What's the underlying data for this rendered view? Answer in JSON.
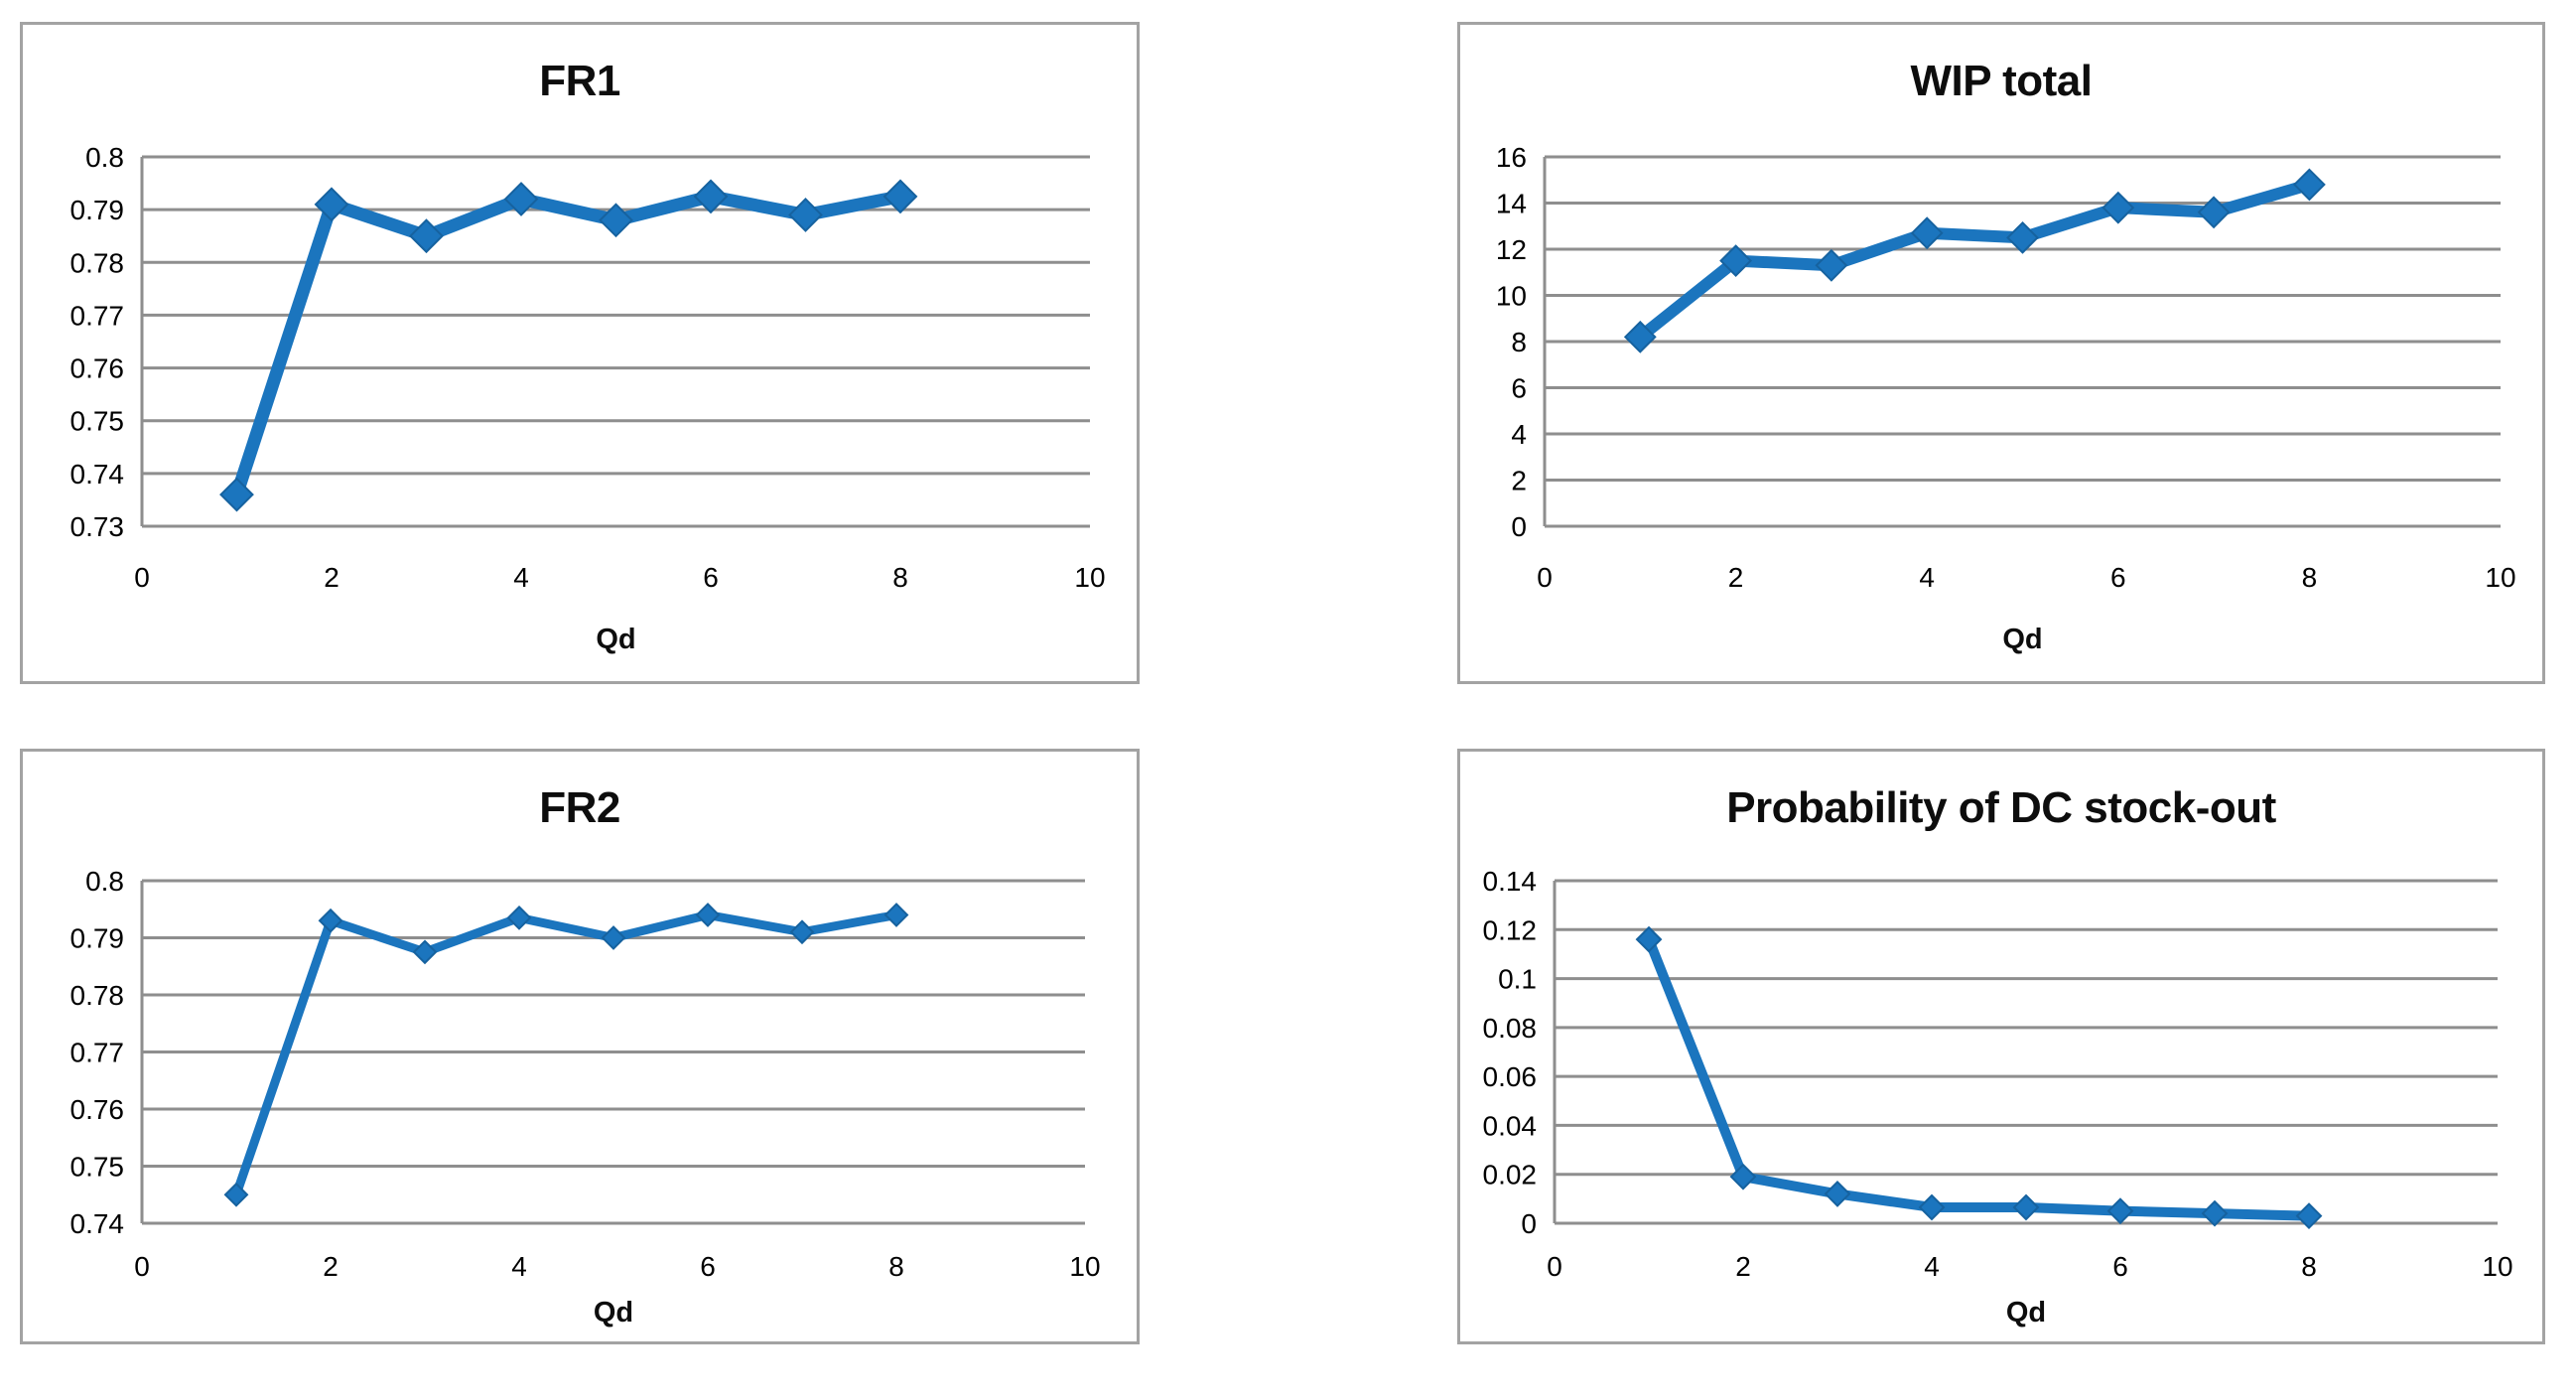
{
  "page": {
    "background": "#ffffff"
  },
  "chart_data": [
    {
      "id": "fr1",
      "type": "line",
      "title": "FR1",
      "xlabel": "Qd",
      "ylabel": "",
      "marker": "diamond",
      "series_color": "#1b75be",
      "gridline_color": "#8e8e8e",
      "x": [
        1,
        2,
        3,
        4,
        5,
        6,
        7,
        8
      ],
      "y": [
        0.736,
        0.791,
        0.785,
        0.792,
        0.788,
        0.7925,
        0.789,
        0.7925
      ],
      "xlim": [
        0,
        10
      ],
      "ylim": [
        0.73,
        0.8
      ],
      "x_tick_values": [
        0,
        2,
        4,
        6,
        8,
        10
      ],
      "x_tick_labels": [
        "0",
        "2",
        "4",
        "6",
        "8",
        "10"
      ],
      "y_tick_values": [
        0.73,
        0.74,
        0.75,
        0.76,
        0.77,
        0.78,
        0.79,
        0.8
      ],
      "y_tick_labels": [
        "0.73",
        "0.74",
        "0.75",
        "0.76",
        "0.77",
        "0.78",
        "0.79",
        "0.8"
      ],
      "grid": "horizontal",
      "legend": "none"
    },
    {
      "id": "wip",
      "type": "line",
      "title": "WIP total",
      "xlabel": "Qd",
      "ylabel": "",
      "marker": "diamond",
      "series_color": "#1b75be",
      "gridline_color": "#8e8e8e",
      "x": [
        1,
        2,
        3,
        4,
        5,
        6,
        7,
        8
      ],
      "y": [
        8.2,
        11.5,
        11.3,
        12.7,
        12.5,
        13.8,
        13.6,
        14.8
      ],
      "xlim": [
        0,
        10
      ],
      "ylim": [
        0,
        16
      ],
      "x_tick_values": [
        0,
        2,
        4,
        6,
        8,
        10
      ],
      "x_tick_labels": [
        "0",
        "2",
        "4",
        "6",
        "8",
        "10"
      ],
      "y_tick_values": [
        0,
        2,
        4,
        6,
        8,
        10,
        12,
        14,
        16
      ],
      "y_tick_labels": [
        "0",
        "2",
        "4",
        "6",
        "8",
        "10",
        "12",
        "14",
        "16"
      ],
      "grid": "horizontal",
      "legend": "none"
    },
    {
      "id": "fr2",
      "type": "line",
      "title": "FR2",
      "xlabel": "Qd",
      "ylabel": "",
      "marker": "diamond",
      "series_color": "#1b75be",
      "gridline_color": "#8e8e8e",
      "x": [
        1,
        2,
        3,
        4,
        5,
        6,
        7,
        8
      ],
      "y": [
        0.745,
        0.793,
        0.7875,
        0.7935,
        0.79,
        0.794,
        0.791,
        0.794
      ],
      "xlim": [
        0,
        10
      ],
      "ylim": [
        0.74,
        0.8
      ],
      "x_tick_values": [
        0,
        2,
        4,
        6,
        8,
        10
      ],
      "x_tick_labels": [
        "0",
        "2",
        "4",
        "6",
        "8",
        "10"
      ],
      "y_tick_values": [
        0.74,
        0.75,
        0.76,
        0.77,
        0.78,
        0.79,
        0.8
      ],
      "y_tick_labels": [
        "0.74",
        "0.75",
        "0.76",
        "0.77",
        "0.78",
        "0.79",
        "0.8"
      ],
      "grid": "horizontal",
      "legend": "none"
    },
    {
      "id": "prob",
      "type": "line",
      "title": "Probability of DC stock-out",
      "xlabel": "Qd",
      "ylabel": "",
      "marker": "diamond",
      "series_color": "#1b75be",
      "gridline_color": "#8e8e8e",
      "x": [
        1,
        2,
        3,
        4,
        5,
        6,
        7,
        8
      ],
      "y": [
        0.116,
        0.019,
        0.012,
        0.0065,
        0.0065,
        0.005,
        0.004,
        0.003
      ],
      "xlim": [
        0,
        10
      ],
      "ylim": [
        0,
        0.14
      ],
      "x_tick_values": [
        0,
        2,
        4,
        6,
        8,
        10
      ],
      "x_tick_labels": [
        "0",
        "2",
        "4",
        "6",
        "8",
        "10"
      ],
      "y_tick_values": [
        0,
        0.02,
        0.04,
        0.06,
        0.08,
        0.1,
        0.12,
        0.14
      ],
      "y_tick_labels": [
        "0",
        "0.02",
        "0.04",
        "0.06",
        "0.08",
        "0.1",
        "0.12",
        "0.14"
      ],
      "grid": "horizontal",
      "legend": "none"
    }
  ]
}
